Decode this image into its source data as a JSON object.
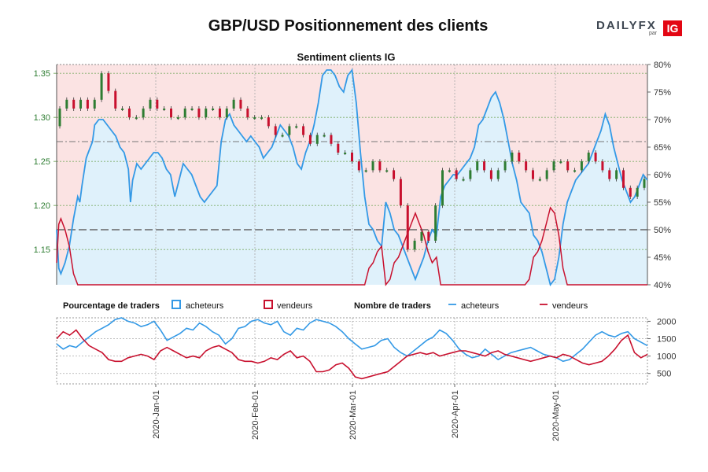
{
  "header": {
    "title": "GBP/USD Positionnement des clients",
    "logo_text": "DAILYFX",
    "logo_par": "par",
    "logo_ig": "IG"
  },
  "chart_data": [
    {
      "type": "candlestick+area",
      "title": "Sentiment clients IG",
      "y_left_ticks": [
        "1.15",
        "1.20",
        "1.25",
        "1.30",
        "1.35"
      ],
      "y_left_range": [
        1.11,
        1.36
      ],
      "y_right_ticks": [
        "40%",
        "45%",
        "50%",
        "55%",
        "60%",
        "65%",
        "70%",
        "75%",
        "80%"
      ],
      "y_right_range": [
        40,
        80
      ],
      "reference_lines": [
        50,
        66
      ],
      "x_range_days": [
        0,
        179
      ],
      "buyers_pct": [
        [
          0,
          50
        ],
        [
          1,
          43
        ],
        [
          2,
          42
        ],
        [
          4,
          44
        ],
        [
          6,
          47
        ],
        [
          8,
          52
        ],
        [
          10,
          56
        ],
        [
          11,
          55
        ],
        [
          12,
          58
        ],
        [
          14,
          63
        ],
        [
          15,
          64
        ],
        [
          17,
          66
        ],
        [
          18,
          69
        ],
        [
          20,
          70
        ],
        [
          22,
          70
        ],
        [
          24,
          69
        ],
        [
          26,
          68
        ],
        [
          28,
          67
        ],
        [
          30,
          65
        ],
        [
          32,
          64
        ],
        [
          34,
          61
        ],
        [
          35,
          55
        ],
        [
          36,
          59
        ],
        [
          38,
          62
        ],
        [
          40,
          61
        ],
        [
          42,
          62
        ],
        [
          44,
          63
        ],
        [
          46,
          64
        ],
        [
          48,
          64
        ],
        [
          50,
          63
        ],
        [
          52,
          61
        ],
        [
          54,
          60
        ],
        [
          56,
          56
        ],
        [
          58,
          59
        ],
        [
          60,
          62
        ],
        [
          62,
          61
        ],
        [
          64,
          60
        ],
        [
          66,
          58
        ],
        [
          68,
          56
        ],
        [
          70,
          55
        ],
        [
          72,
          56
        ],
        [
          74,
          57
        ],
        [
          76,
          58
        ],
        [
          78,
          66
        ],
        [
          80,
          70
        ],
        [
          82,
          71
        ],
        [
          84,
          69
        ],
        [
          86,
          68
        ],
        [
          88,
          67
        ],
        [
          90,
          66
        ],
        [
          92,
          67
        ],
        [
          94,
          66
        ],
        [
          96,
          65
        ],
        [
          98,
          63
        ],
        [
          100,
          64
        ],
        [
          102,
          65
        ],
        [
          104,
          67
        ],
        [
          106,
          69
        ],
        [
          108,
          68
        ],
        [
          110,
          67
        ],
        [
          112,
          65
        ],
        [
          114,
          62
        ],
        [
          116,
          61
        ],
        [
          118,
          64
        ],
        [
          120,
          66
        ],
        [
          122,
          69
        ],
        [
          124,
          73
        ],
        [
          126,
          78
        ],
        [
          128,
          79
        ],
        [
          130,
          79
        ],
        [
          132,
          78
        ],
        [
          134,
          76
        ],
        [
          136,
          75
        ],
        [
          138,
          78
        ],
        [
          140,
          79
        ],
        [
          142,
          73
        ],
        [
          144,
          64
        ],
        [
          146,
          56
        ],
        [
          148,
          51
        ],
        [
          150,
          50
        ],
        [
          152,
          48
        ],
        [
          154,
          47
        ],
        [
          156,
          55
        ],
        [
          158,
          53
        ],
        [
          160,
          50
        ],
        [
          162,
          49
        ],
        [
          164,
          47
        ],
        [
          166,
          45
        ],
        [
          168,
          43
        ],
        [
          170,
          41
        ],
        [
          172,
          43
        ],
        [
          174,
          45
        ],
        [
          176,
          48
        ],
        [
          178,
          50
        ],
        [
          180,
          49
        ],
        [
          182,
          56
        ],
        [
          184,
          58
        ],
        [
          186,
          59
        ],
        [
          188,
          60
        ],
        [
          190,
          60
        ],
        [
          192,
          61
        ],
        [
          194,
          62
        ],
        [
          196,
          63
        ],
        [
          198,
          65
        ],
        [
          200,
          69
        ],
        [
          202,
          70
        ],
        [
          204,
          72
        ],
        [
          206,
          74
        ],
        [
          208,
          75
        ],
        [
          210,
          73
        ],
        [
          212,
          70
        ],
        [
          214,
          66
        ],
        [
          216,
          62
        ],
        [
          218,
          59
        ],
        [
          220,
          55
        ],
        [
          222,
          54
        ],
        [
          224,
          53
        ],
        [
          226,
          49
        ],
        [
          228,
          48
        ],
        [
          230,
          46
        ],
        [
          232,
          43
        ],
        [
          234,
          40
        ],
        [
          236,
          41
        ],
        [
          238,
          45
        ],
        [
          240,
          51
        ],
        [
          242,
          55
        ],
        [
          244,
          57
        ],
        [
          246,
          59
        ],
        [
          248,
          60
        ],
        [
          250,
          61
        ],
        [
          252,
          62
        ],
        [
          254,
          64
        ],
        [
          256,
          66
        ],
        [
          258,
          68
        ],
        [
          260,
          71
        ],
        [
          262,
          69
        ],
        [
          264,
          65
        ],
        [
          266,
          62
        ],
        [
          268,
          59
        ],
        [
          270,
          57
        ],
        [
          272,
          55
        ],
        [
          274,
          56
        ],
        [
          276,
          58
        ],
        [
          278,
          60
        ],
        [
          280,
          59
        ]
      ],
      "price_candles": [
        [
          0,
          1.29,
          1.31
        ],
        [
          2,
          1.31,
          1.32
        ],
        [
          4,
          1.32,
          1.31
        ],
        [
          6,
          1.31,
          1.32
        ],
        [
          8,
          1.32,
          1.31
        ],
        [
          10,
          1.31,
          1.32
        ],
        [
          12,
          1.32,
          1.35
        ],
        [
          14,
          1.35,
          1.33
        ],
        [
          16,
          1.33,
          1.31
        ],
        [
          18,
          1.31,
          1.31
        ],
        [
          20,
          1.31,
          1.3
        ],
        [
          22,
          1.3,
          1.3
        ],
        [
          24,
          1.3,
          1.31
        ],
        [
          26,
          1.31,
          1.32
        ],
        [
          28,
          1.32,
          1.31
        ],
        [
          30,
          1.31,
          1.31
        ],
        [
          32,
          1.31,
          1.3
        ],
        [
          34,
          1.3,
          1.3
        ],
        [
          36,
          1.3,
          1.31
        ],
        [
          38,
          1.31,
          1.31
        ],
        [
          40,
          1.31,
          1.3
        ],
        [
          42,
          1.3,
          1.31
        ],
        [
          44,
          1.31,
          1.31
        ],
        [
          46,
          1.31,
          1.3
        ],
        [
          48,
          1.3,
          1.31
        ],
        [
          50,
          1.31,
          1.32
        ],
        [
          52,
          1.32,
          1.31
        ],
        [
          54,
          1.31,
          1.3
        ],
        [
          56,
          1.3,
          1.3
        ],
        [
          58,
          1.3,
          1.3
        ],
        [
          60,
          1.3,
          1.29
        ],
        [
          62,
          1.29,
          1.28
        ],
        [
          64,
          1.28,
          1.28
        ],
        [
          66,
          1.28,
          1.29
        ],
        [
          68,
          1.29,
          1.29
        ],
        [
          70,
          1.29,
          1.28
        ],
        [
          72,
          1.28,
          1.27
        ],
        [
          74,
          1.27,
          1.28
        ],
        [
          76,
          1.28,
          1.28
        ],
        [
          78,
          1.28,
          1.27
        ],
        [
          80,
          1.27,
          1.26
        ],
        [
          82,
          1.26,
          1.26
        ],
        [
          84,
          1.26,
          1.25
        ],
        [
          86,
          1.25,
          1.24
        ],
        [
          88,
          1.24,
          1.24
        ],
        [
          90,
          1.24,
          1.25
        ],
        [
          92,
          1.25,
          1.24
        ],
        [
          94,
          1.24,
          1.24
        ],
        [
          96,
          1.24,
          1.23
        ],
        [
          98,
          1.23,
          1.2
        ],
        [
          100,
          1.2,
          1.15
        ],
        [
          102,
          1.15,
          1.16
        ],
        [
          104,
          1.16,
          1.17
        ],
        [
          106,
          1.17,
          1.16
        ],
        [
          108,
          1.16,
          1.2
        ],
        [
          110,
          1.2,
          1.24
        ],
        [
          112,
          1.24,
          1.24
        ],
        [
          114,
          1.24,
          1.23
        ],
        [
          116,
          1.23,
          1.23
        ],
        [
          118,
          1.23,
          1.24
        ],
        [
          120,
          1.24,
          1.25
        ],
        [
          122,
          1.25,
          1.24
        ],
        [
          124,
          1.24,
          1.23
        ],
        [
          126,
          1.23,
          1.24
        ],
        [
          128,
          1.24,
          1.25
        ],
        [
          130,
          1.25,
          1.26
        ],
        [
          132,
          1.26,
          1.25
        ],
        [
          134,
          1.25,
          1.24
        ],
        [
          136,
          1.24,
          1.23
        ],
        [
          138,
          1.23,
          1.23
        ],
        [
          140,
          1.23,
          1.24
        ],
        [
          142,
          1.24,
          1.25
        ],
        [
          144,
          1.25,
          1.25
        ],
        [
          146,
          1.25,
          1.24
        ],
        [
          148,
          1.24,
          1.24
        ],
        [
          150,
          1.24,
          1.25
        ],
        [
          152,
          1.25,
          1.26
        ],
        [
          154,
          1.26,
          1.25
        ],
        [
          156,
          1.25,
          1.24
        ],
        [
          158,
          1.24,
          1.23
        ],
        [
          160,
          1.23,
          1.24
        ],
        [
          162,
          1.24,
          1.22
        ],
        [
          164,
          1.22,
          1.21
        ],
        [
          166,
          1.21,
          1.22
        ],
        [
          168,
          1.22,
          1.23
        ]
      ]
    },
    {
      "type": "line",
      "y_right_ticks": [
        "500",
        "1000",
        "1500",
        "2000"
      ],
      "y_range": [
        200,
        2100
      ],
      "buyers_count": [
        1350,
        1200,
        1300,
        1250,
        1400,
        1550,
        1700,
        1800,
        1900,
        2050,
        2100,
        2000,
        1950,
        1850,
        1900,
        2000,
        1750,
        1450,
        1550,
        1650,
        1800,
        1750,
        1950,
        1850,
        1700,
        1600,
        1350,
        1500,
        1800,
        1850,
        2000,
        2050,
        1950,
        1900,
        2000,
        1700,
        1600,
        1800,
        1750,
        1950,
        2050,
        2000,
        1950,
        1850,
        1700,
        1500,
        1350,
        1200,
        1250,
        1300,
        1450,
        1500,
        1250,
        1100,
        1000,
        1150,
        1300,
        1450,
        1550,
        1750,
        1650,
        1450,
        1200,
        1050,
        950,
        1000,
        1200,
        1050,
        900,
        1000,
        1100,
        1150,
        1200,
        1250,
        1150,
        1050,
        1000,
        950,
        850,
        900,
        1050,
        1200,
        1400,
        1600,
        1700,
        1600,
        1550,
        1650,
        1700,
        1500,
        1400,
        1300
      ],
      "sellers_count": [
        1500,
        1700,
        1600,
        1750,
        1500,
        1300,
        1200,
        1100,
        900,
        850,
        850,
        950,
        1000,
        1050,
        1000,
        900,
        1150,
        1250,
        1150,
        1050,
        950,
        1000,
        950,
        1150,
        1250,
        1300,
        1200,
        1100,
        900,
        850,
        850,
        800,
        850,
        950,
        900,
        1050,
        1150,
        950,
        1000,
        850,
        550,
        550,
        600,
        750,
        800,
        650,
        400,
        350,
        400,
        450,
        500,
        550,
        700,
        850,
        1000,
        1050,
        1100,
        1050,
        1100,
        1000,
        1050,
        1100,
        1150,
        1150,
        1100,
        1050,
        1000,
        1100,
        1150,
        1050,
        1000,
        950,
        900,
        850,
        900,
        950,
        1000,
        950,
        1050,
        1000,
        900,
        800,
        750,
        800,
        850,
        1000,
        1200,
        1450,
        1600,
        1100,
        950,
        1050
      ]
    }
  ],
  "x_ticks": [
    "2020-Jan-01",
    "2020-Feb-01",
    "2020-Mar-01",
    "2020-Apr-01",
    "2020-May-01"
  ],
  "legend": {
    "pct_label": "Pourcentage de traders",
    "num_label": "Nombre de traders",
    "buyers": "acheteurs",
    "sellers": "vendeurs"
  },
  "colors": {
    "buyers": "#3399e6",
    "sellers": "#c8102e",
    "buyers_fill": "#dff1fb",
    "sellers_fill": "#fbe3e3",
    "candle_up": "#2e7d32",
    "candle_down": "#c8102e",
    "grid_green": "#7fae6a",
    "grid_gray": "#aaaaaa"
  }
}
